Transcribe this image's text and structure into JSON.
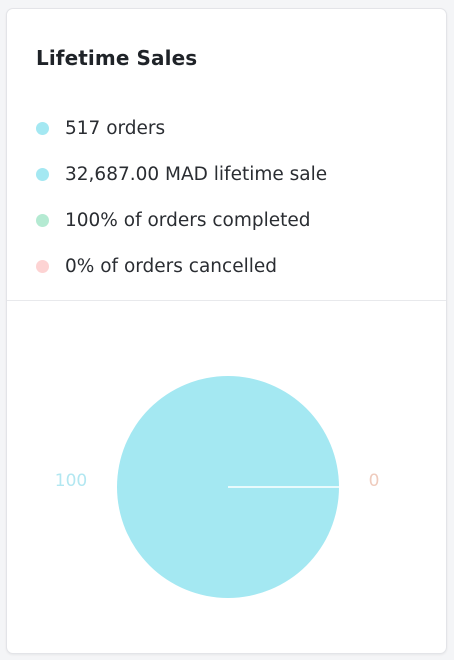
{
  "card": {
    "title": "Lifetime Sales",
    "stats": [
      {
        "label": "517 orders",
        "color": "#a4e8f2"
      },
      {
        "label": "32,687.00 MAD lifetime sale",
        "color": "#a4e8f2"
      },
      {
        "label": "100% of orders completed",
        "color": "#b4ead2"
      },
      {
        "label": "0% of orders cancelled",
        "color": "#fdd3d3"
      }
    ]
  },
  "chart_data": {
    "type": "pie",
    "categories": [
      "completed",
      "cancelled"
    ],
    "values": [
      100,
      0
    ],
    "colors": [
      "#a4e8f2",
      "#f7d2c4"
    ],
    "label_colors": [
      "#b2e7f1",
      "#efcbbd"
    ],
    "title": "",
    "legend": "none"
  }
}
